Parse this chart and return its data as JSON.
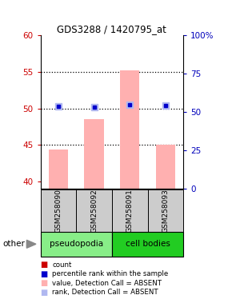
{
  "title": "GDS3288 / 1420795_at",
  "samples": [
    "GSM258090",
    "GSM258092",
    "GSM258091",
    "GSM258093"
  ],
  "bar_values": [
    44.4,
    48.5,
    55.2,
    45.0
  ],
  "rank_values": [
    50.3,
    50.15,
    50.5,
    50.35
  ],
  "bar_color": "#ffb0b0",
  "rank_dot_color": "#0000cc",
  "rank_marker_color": "#b0b8f0",
  "ylim_left": [
    39,
    60
  ],
  "ylim_right": [
    0,
    100
  ],
  "yticks_left": [
    40,
    45,
    50,
    55,
    60
  ],
  "yticks_right": [
    0,
    25,
    50,
    75,
    100
  ],
  "ytick_labels_right": [
    "0",
    "25",
    "50",
    "75",
    "100%"
  ],
  "left_tick_color": "#cc0000",
  "right_tick_color": "#0000bb",
  "group_colors": {
    "pseudopodia": "#88ee88",
    "cell bodies": "#22cc22"
  },
  "baseline": 39,
  "fig_width": 2.9,
  "fig_height": 3.84,
  "legend_items": [
    {
      "label": "count",
      "color": "#cc0000"
    },
    {
      "label": "percentile rank within the sample",
      "color": "#0000cc"
    },
    {
      "label": "value, Detection Call = ABSENT",
      "color": "#ffb0b0"
    },
    {
      "label": "rank, Detection Call = ABSENT",
      "color": "#b0b8f0"
    }
  ]
}
